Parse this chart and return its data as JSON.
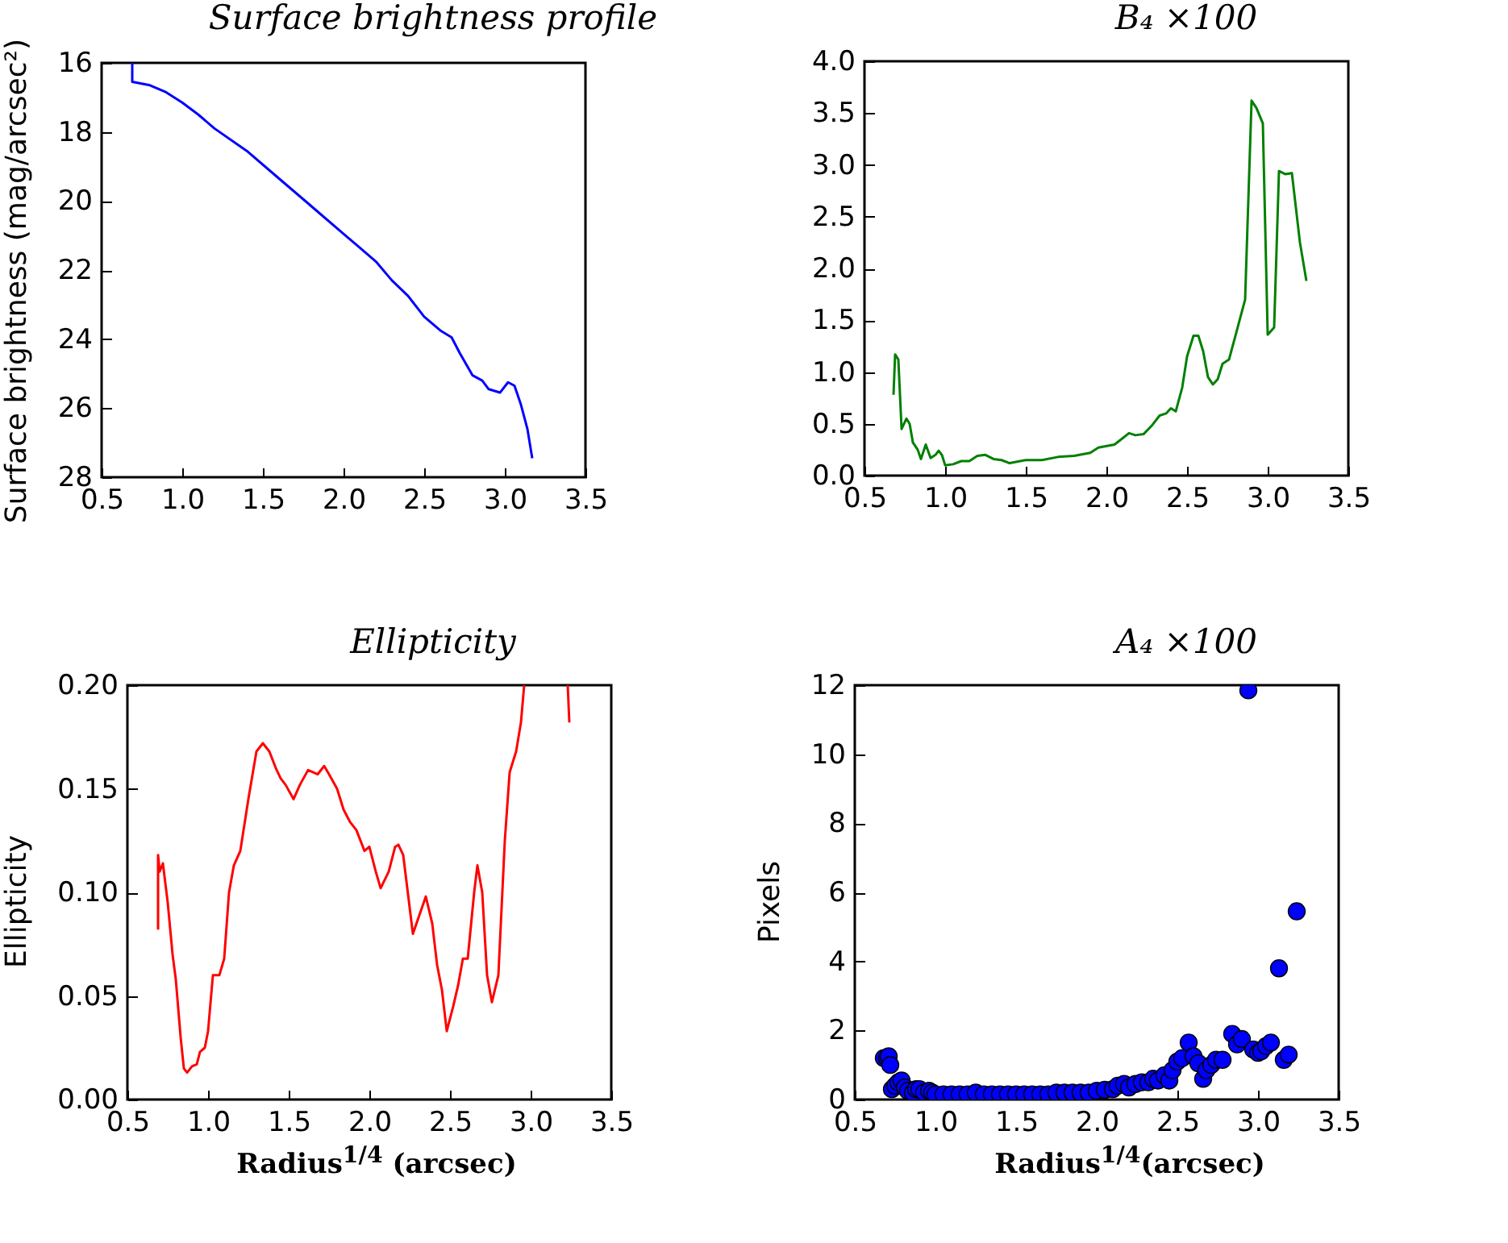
{
  "chart_data": [
    {
      "type": "line",
      "title": "Surface brightness profile",
      "ylabel": "Surface   brightness   (mag/arcsec²)",
      "x": [
        0.69,
        0.69,
        0.8,
        0.9,
        1.0,
        1.1,
        1.2,
        1.4,
        1.6,
        1.8,
        2.0,
        2.1,
        2.2,
        2.3,
        2.4,
        2.5,
        2.6,
        2.67,
        2.72,
        2.8,
        2.86,
        2.9,
        2.97,
        3.02,
        3.06,
        3.1,
        3.14,
        3.17
      ],
      "series": [
        {
          "color": "#0000ff",
          "values": [
            16.0,
            16.55,
            16.65,
            16.85,
            17.15,
            17.5,
            17.9,
            18.55,
            19.35,
            20.15,
            20.95,
            21.35,
            21.75,
            22.3,
            22.75,
            23.35,
            23.75,
            23.95,
            24.4,
            25.05,
            25.2,
            25.45,
            25.55,
            25.25,
            25.35,
            25.9,
            26.6,
            27.45
          ]
        }
      ],
      "xlim": [
        0.5,
        3.5
      ],
      "xticks": [
        {
          "value": 0.5,
          "label": "0.5"
        },
        {
          "value": 1,
          "label": "1.0"
        },
        {
          "value": 1.5,
          "label": "1.5"
        },
        {
          "value": 2,
          "label": "2.0"
        },
        {
          "value": 2.5,
          "label": "2.5"
        },
        {
          "value": 3,
          "label": "3.0"
        },
        {
          "value": 3.5,
          "label": "3.5"
        }
      ],
      "ylim": [
        28,
        16
      ],
      "yticks": [
        16,
        18,
        20,
        22,
        24,
        26,
        28
      ]
    },
    {
      "type": "line",
      "title": "B₄ ×100",
      "x": [
        0.68,
        0.69,
        0.71,
        0.73,
        0.76,
        0.78,
        0.8,
        0.83,
        0.85,
        0.88,
        0.91,
        0.94,
        0.96,
        0.98,
        1.0,
        1.05,
        1.1,
        1.15,
        1.2,
        1.25,
        1.3,
        1.35,
        1.4,
        1.5,
        1.6,
        1.7,
        1.8,
        1.9,
        1.95,
        2.05,
        2.1,
        2.14,
        2.18,
        2.23,
        2.28,
        2.33,
        2.37,
        2.4,
        2.43,
        2.47,
        2.5,
        2.54,
        2.57,
        2.6,
        2.63,
        2.66,
        2.69,
        2.72,
        2.76,
        2.8,
        2.86,
        2.9,
        2.93,
        2.97,
        3.0,
        3.04,
        3.07,
        3.11,
        3.15,
        3.2,
        3.24
      ],
      "series": [
        {
          "color": "#008000",
          "values": [
            0.78,
            1.17,
            1.12,
            0.45,
            0.55,
            0.5,
            0.32,
            0.25,
            0.16,
            0.3,
            0.17,
            0.2,
            0.24,
            0.2,
            0.1,
            0.11,
            0.14,
            0.14,
            0.19,
            0.2,
            0.16,
            0.15,
            0.12,
            0.15,
            0.15,
            0.18,
            0.19,
            0.22,
            0.27,
            0.3,
            0.36,
            0.41,
            0.39,
            0.4,
            0.48,
            0.58,
            0.6,
            0.65,
            0.62,
            0.85,
            1.15,
            1.35,
            1.35,
            1.2,
            0.95,
            0.88,
            0.93,
            1.08,
            1.12,
            1.35,
            1.7,
            3.62,
            3.55,
            3.4,
            1.36,
            1.43,
            2.94,
            2.91,
            2.92,
            2.25,
            1.88
          ]
        }
      ],
      "xlim": [
        0.5,
        3.5
      ],
      "xticks": [
        {
          "value": 0.5,
          "label": "0.5"
        },
        {
          "value": 1,
          "label": "1.0"
        },
        {
          "value": 1.5,
          "label": "1.5"
        },
        {
          "value": 2,
          "label": "2.0"
        },
        {
          "value": 2.5,
          "label": "2.5"
        },
        {
          "value": 3,
          "label": "3.0"
        },
        {
          "value": 3.5,
          "label": "3.5"
        }
      ],
      "ylim": [
        0,
        4
      ],
      "yticks": [
        {
          "value": 0,
          "label": "0.0"
        },
        {
          "value": 0.5,
          "label": "0.5"
        },
        {
          "value": 1,
          "label": "1.0"
        },
        {
          "value": 1.5,
          "label": "1.5"
        },
        {
          "value": 2,
          "label": "2.0"
        },
        {
          "value": 2.5,
          "label": "2.5"
        },
        {
          "value": 3,
          "label": "3.0"
        },
        {
          "value": 3.5,
          "label": "3.5"
        },
        {
          "value": 4,
          "label": "4.0"
        }
      ]
    },
    {
      "type": "line",
      "title": "Ellipticity",
      "xlabel": "Radius$^{1/4}$ (arcsec)",
      "ylabel": "Ellipticity",
      "x": [
        0.69,
        0.69,
        0.7,
        0.72,
        0.75,
        0.78,
        0.8,
        0.83,
        0.85,
        0.87,
        0.9,
        0.93,
        0.95,
        0.98,
        1.0,
        1.03,
        1.07,
        1.1,
        1.13,
        1.16,
        1.2,
        1.25,
        1.3,
        1.34,
        1.38,
        1.42,
        1.45,
        1.48,
        1.53,
        1.57,
        1.62,
        1.65,
        1.68,
        1.72,
        1.75,
        1.8,
        1.84,
        1.88,
        1.92,
        1.97,
        2.0,
        2.04,
        2.07,
        2.12,
        2.16,
        2.18,
        2.21,
        2.27,
        2.35,
        2.39,
        2.42,
        2.45,
        2.48,
        2.52,
        2.55,
        2.58,
        2.61,
        2.65,
        2.67,
        2.7,
        2.73,
        2.76,
        2.8,
        2.84,
        2.87,
        2.91,
        2.94,
        2.96,
        3.1,
        3.23,
        3.24
      ],
      "series": [
        {
          "color": "#ff0000",
          "values": [
            0.082,
            0.118,
            0.11,
            0.114,
            0.095,
            0.07,
            0.058,
            0.03,
            0.015,
            0.013,
            0.016,
            0.017,
            0.023,
            0.025,
            0.033,
            0.06,
            0.06,
            0.068,
            0.1,
            0.113,
            0.12,
            0.145,
            0.168,
            0.172,
            0.168,
            0.16,
            0.155,
            0.152,
            0.145,
            0.152,
            0.159,
            0.158,
            0.157,
            0.161,
            0.157,
            0.15,
            0.14,
            0.134,
            0.13,
            0.12,
            0.122,
            0.11,
            0.102,
            0.11,
            0.122,
            0.123,
            0.118,
            0.08,
            0.098,
            0.085,
            0.065,
            0.053,
            0.033,
            0.045,
            0.055,
            0.068,
            0.068,
            0.1,
            0.113,
            0.1,
            0.06,
            0.047,
            0.06,
            0.125,
            0.158,
            0.168,
            0.182,
            0.2,
            null,
            0.2,
            0.182
          ]
        }
      ],
      "xlim": [
        0.5,
        3.5
      ],
      "xticks": [
        {
          "value": 0.5,
          "label": "0.5"
        },
        {
          "value": 1,
          "label": "1.0"
        },
        {
          "value": 1.5,
          "label": "1.5"
        },
        {
          "value": 2,
          "label": "2.0"
        },
        {
          "value": 2.5,
          "label": "2.5"
        },
        {
          "value": 3,
          "label": "3.0"
        },
        {
          "value": 3.5,
          "label": "3.5"
        }
      ],
      "ylim": [
        0,
        0.2
      ],
      "yticks": [
        {
          "value": 0,
          "label": "0.00"
        },
        {
          "value": 0.05,
          "label": "0.05"
        },
        {
          "value": 0.1,
          "label": "0.10"
        },
        {
          "value": 0.15,
          "label": "0.15"
        },
        {
          "value": 0.2,
          "label": "0.20"
        }
      ]
    },
    {
      "type": "scatter",
      "title": "A₄ ×100",
      "xlabel": "Radius$^{1/4}$(arcsec)",
      "ylabel": "Pixels",
      "marker": "circle",
      "x": [
        0.68,
        0.7,
        0.71,
        0.72,
        0.73,
        0.75,
        0.77,
        0.79,
        0.81,
        0.83,
        0.86,
        0.88,
        0.9,
        0.93,
        0.96,
        0.98,
        1.0,
        1.05,
        1.1,
        1.15,
        1.2,
        1.25,
        1.3,
        1.35,
        1.4,
        1.45,
        1.5,
        1.55,
        1.6,
        1.65,
        1.7,
        1.75,
        1.8,
        1.85,
        1.9,
        1.95,
        2.0,
        2.05,
        2.1,
        2.13,
        2.17,
        2.2,
        2.24,
        2.28,
        2.32,
        2.35,
        2.38,
        2.42,
        2.45,
        2.47,
        2.5,
        2.53,
        2.57,
        2.6,
        2.63,
        2.66,
        2.68,
        2.71,
        2.74,
        2.78,
        2.84,
        2.87,
        2.9,
        2.94,
        2.97,
        3.0,
        3.02,
        3.05,
        3.08,
        3.13,
        3.16,
        3.19,
        3.24
      ],
      "series": [
        {
          "color": "#0000ff",
          "values": [
            1.2,
            1.2,
            1.25,
            1.0,
            0.3,
            0.4,
            0.5,
            0.55,
            0.35,
            0.25,
            0.2,
            0.3,
            0.3,
            0.2,
            0.25,
            0.2,
            0.15,
            0.15,
            0.15,
            0.15,
            0.15,
            0.2,
            0.15,
            0.15,
            0.15,
            0.15,
            0.15,
            0.15,
            0.15,
            0.15,
            0.15,
            0.2,
            0.2,
            0.2,
            0.2,
            0.2,
            0.25,
            0.28,
            0.3,
            0.4,
            0.45,
            0.35,
            0.45,
            0.5,
            0.5,
            0.6,
            0.55,
            0.7,
            0.55,
            0.85,
            1.1,
            1.2,
            1.65,
            1.25,
            1.05,
            0.6,
            0.85,
            1.0,
            1.15,
            1.15,
            1.9,
            1.6,
            1.75,
            11.85,
            1.45,
            1.35,
            1.4,
            1.55,
            1.65,
            3.8,
            1.15,
            1.3,
            5.45
          ]
        }
      ],
      "xlim": [
        0.5,
        3.5
      ],
      "xticks": [
        {
          "value": 0.5,
          "label": "0.5"
        },
        {
          "value": 1,
          "label": "1.0"
        },
        {
          "value": 1.5,
          "label": "1.5"
        },
        {
          "value": 2,
          "label": "2.0"
        },
        {
          "value": 2.5,
          "label": "2.5"
        },
        {
          "value": 3,
          "label": "3.0"
        },
        {
          "value": 3.5,
          "label": "3.5"
        }
      ],
      "ylim": [
        0,
        12
      ],
      "yticks": [
        0,
        2,
        4,
        6,
        8,
        10,
        12
      ]
    }
  ]
}
